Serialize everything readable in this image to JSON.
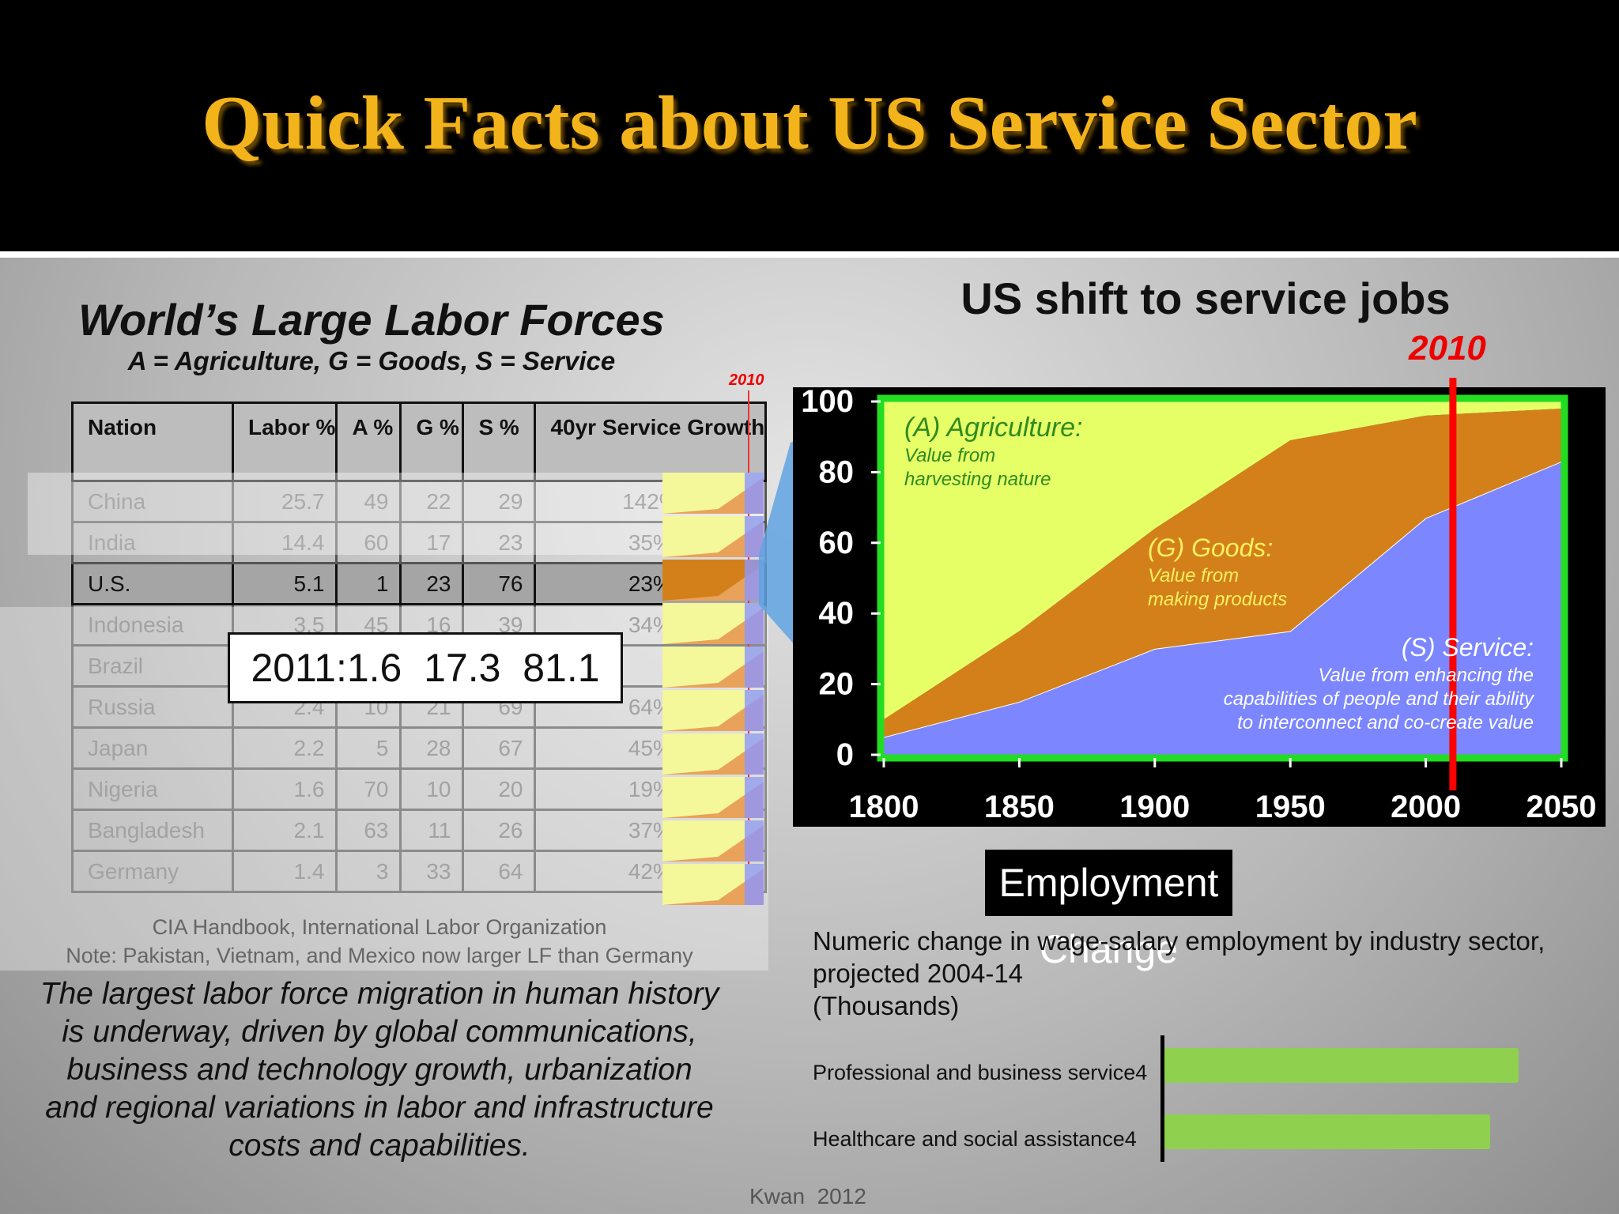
{
  "slide": {
    "title": "Quick Facts about US Service Sector",
    "footer": "Kwan  2012"
  },
  "left": {
    "heading": "World’s Large Labor Forces",
    "subheading": "A = Agriculture, G = Goods, S = Service",
    "small_year": "2010",
    "table": {
      "headers": [
        "Nation",
        "Labor %",
        "A %",
        "G %",
        "S %",
        "40yr Service Growth"
      ],
      "rows": [
        [
          "China",
          "25.7",
          "49",
          "22",
          "29",
          "142%"
        ],
        [
          "India",
          "14.4",
          "60",
          "17",
          "23",
          "35%"
        ],
        [
          "U.S.",
          "5.1",
          "1",
          "23",
          "76",
          "23%"
        ],
        [
          "Indonesia",
          "3.5",
          "45",
          "16",
          "39",
          "34%"
        ],
        [
          "Brazil",
          "",
          "",
          "",
          "",
          ""
        ],
        [
          "Russia",
          "2.4",
          "10",
          "21",
          "69",
          "64%"
        ],
        [
          "Japan",
          "2.2",
          "5",
          "28",
          "67",
          "45%"
        ],
        [
          "Nigeria",
          "1.6",
          "70",
          "10",
          "20",
          "19%"
        ],
        [
          "Bangladesh",
          "2.1",
          "63",
          "11",
          "26",
          "37%"
        ],
        [
          "Germany",
          "1.4",
          "3",
          "33",
          "64",
          "42%"
        ]
      ]
    },
    "callout": "2011:1.6  17.3  81.1",
    "source_line1": "CIA Handbook, International Labor Organization",
    "source_line2": "Note: Pakistan, Vietnam, and Mexico now larger LF than Germany",
    "migration_text": "The largest labor force migration in human history is underway, driven by global communications, business and technology growth, urbanization and regional variations in labor and infrastructure costs and capabilities."
  },
  "right": {
    "heading": "US shift to service jobs",
    "year_marker": "2010",
    "chart_data": {
      "type": "area",
      "x": [
        1800,
        1850,
        1900,
        1950,
        2000,
        2050
      ],
      "xlim": [
        1800,
        2050
      ],
      "ylim": [
        0,
        100
      ],
      "yticks": [
        "0",
        "20",
        "40",
        "60",
        "80",
        "100"
      ],
      "xticks": [
        "1800",
        "1850",
        "1900",
        "1950",
        "2000",
        "2050"
      ],
      "series": [
        {
          "name": "(S) Service:",
          "values": [
            5,
            15,
            30,
            35,
            67,
            83
          ]
        },
        {
          "name": "(G) Goods:",
          "values": [
            5,
            20,
            34,
            54,
            29,
            15
          ]
        },
        {
          "name": "(A) Agriculture:",
          "values": [
            90,
            65,
            36,
            11,
            4,
            2
          ]
        }
      ],
      "vertical_marker": 2010,
      "annotations": {
        "agriculture": {
          "title": "(A) Agriculture:",
          "line1": "Value from",
          "line2": "harvesting nature"
        },
        "goods": {
          "title": "(G) Goods:",
          "line1": "Value from",
          "line2": "making products"
        },
        "service": {
          "title": "(S) Service:",
          "line1": "Value from enhancing the",
          "line2": "capabilities of people and their ability",
          "line3": "to interconnect and co-create value"
        }
      },
      "colors": {
        "agriculture": "#e6ff66",
        "goods": "#d4801a",
        "service": "#7b86ff",
        "frame": "#22dd22",
        "marker": "#ff0000"
      }
    },
    "employment": {
      "title": "Employment Change",
      "desc_line1": "Numeric change in wage-salary employment by industry sector,",
      "desc_line2": "projected 2004-14",
      "desc_line3": "(Thousands)",
      "bars": [
        {
          "label": "Professional and business service4",
          "value": 1.0
        },
        {
          "label": "Healthcare and social assistance4",
          "value": 0.92
        }
      ],
      "bar_color": "#8fd14f"
    }
  }
}
